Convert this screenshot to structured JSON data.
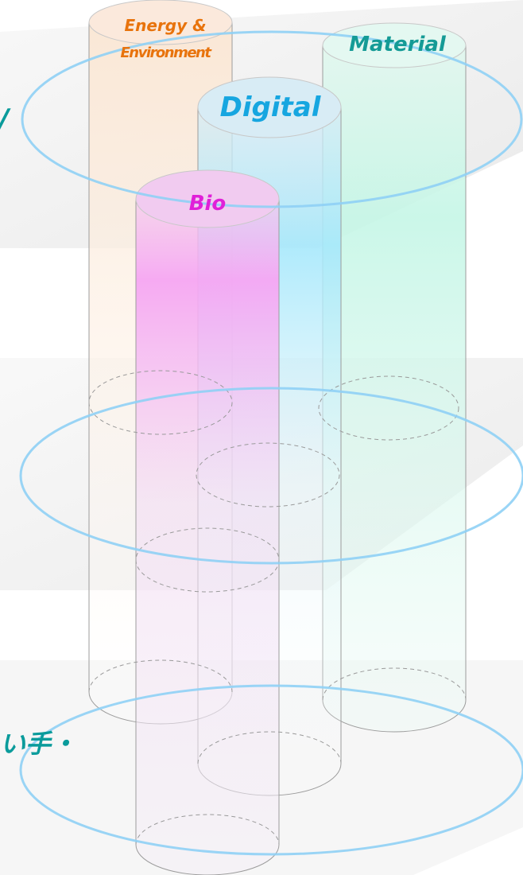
{
  "pillars": {
    "energy": {
      "label_line1": "Energy &",
      "label_line2": "Environment"
    },
    "material": {
      "label": "Material"
    },
    "digital": {
      "label": "Digital"
    },
    "bio": {
      "label": "Bio"
    }
  },
  "edge_text": {
    "top_glyph": "/",
    "bottom_glyph": "い手・"
  },
  "colors": {
    "energy": "#e8730c",
    "material": "#159b96",
    "digital": "#16a6e0",
    "bio": "#e020d8",
    "ring": "#8fd0f5"
  }
}
